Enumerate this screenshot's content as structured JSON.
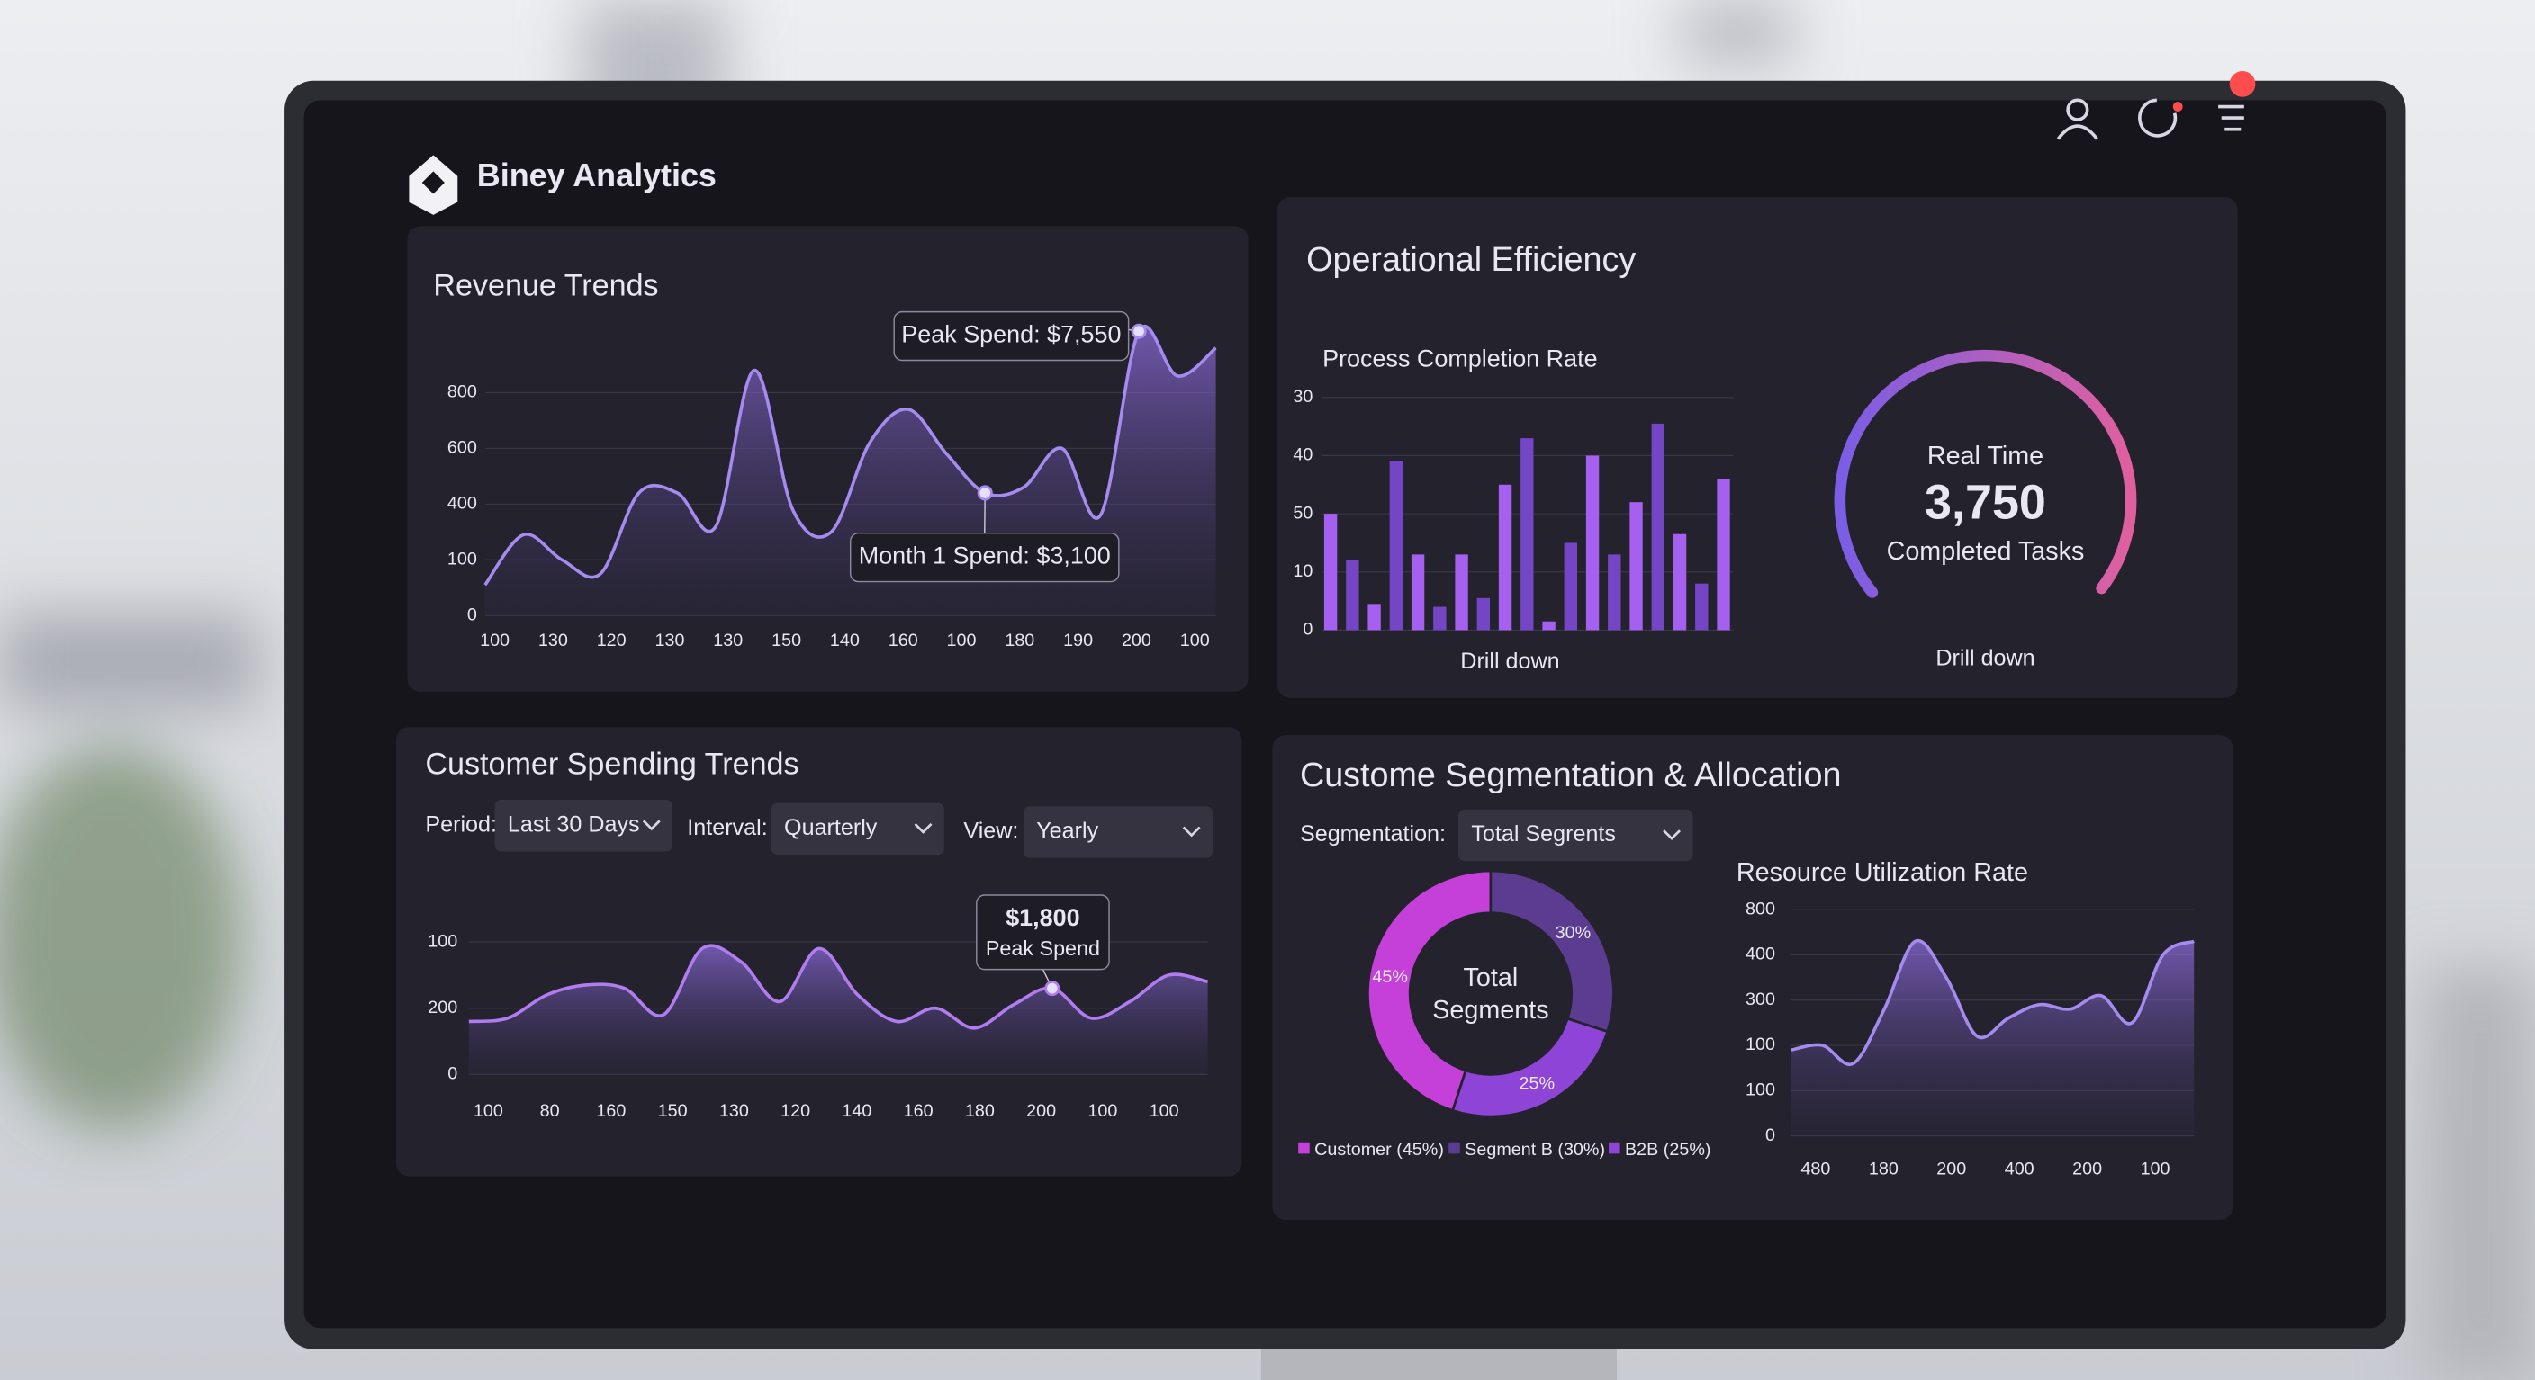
{
  "header": {
    "title": "Biney Analytics"
  },
  "revenue_trends": {
    "type": "line",
    "title": "Revenue Trends",
    "x_labels": [
      "100",
      "130",
      "120",
      "130",
      "130",
      "150",
      "140",
      "160",
      "100",
      "180",
      "190",
      "200",
      "100"
    ],
    "y_labels": [
      "0",
      "100",
      "400",
      "600",
      "800"
    ],
    "values": [
      0.55,
      1.45,
      1.0,
      0.75,
      2.2,
      2.2,
      1.6,
      4.4,
      1.9,
      1.5,
      3.1,
      3.7,
      2.9,
      2.2,
      2.3,
      3.0,
      1.8,
      5.1,
      4.3,
      4.8
    ],
    "color": "#a58af0",
    "annotations": [
      {
        "text": "Peak Spend: $7,550",
        "point": 17
      },
      {
        "text": "Month 1 Spend: $3,100",
        "point": 13
      }
    ]
  },
  "operational_efficiency": {
    "title": "Operational Efficiency",
    "process_completion": {
      "type": "bar",
      "title": "Process Completion Rate",
      "y_labels": [
        "0",
        "10",
        "50",
        "40",
        "30"
      ],
      "values": [
        2.0,
        1.2,
        0.45,
        2.9,
        1.3,
        0.4,
        1.3,
        0.55,
        2.5,
        3.3,
        0.15,
        1.5,
        3.0,
        1.3,
        2.2,
        3.55,
        1.65,
        0.8,
        2.6
      ],
      "colors": [
        "#a560f0",
        "#7446c6"
      ],
      "link": "Drill down"
    },
    "realtime": {
      "type": "gauge",
      "label": "Real Time",
      "value": "3,750",
      "caption": "Completed Tasks",
      "link": "Drill down",
      "colors": [
        "#7a5ee6",
        "#e0609e"
      ]
    }
  },
  "customer_spending": {
    "type": "line",
    "title": "Customer Spending Trends",
    "filters": [
      {
        "label": "Period:",
        "value": "Last 30 Days"
      },
      {
        "label": "Interval:",
        "value": "Quarterly"
      },
      {
        "label": "View:",
        "value": "Yearly"
      }
    ],
    "x_labels": [
      "100",
      "80",
      "160",
      "150",
      "130",
      "120",
      "140",
      "160",
      "180",
      "200",
      "100",
      "100"
    ],
    "y_labels": [
      "0",
      "200",
      "100"
    ],
    "values": [
      0.8,
      0.85,
      1.2,
      1.35,
      1.3,
      0.9,
      1.9,
      1.7,
      1.1,
      1.9,
      1.2,
      0.8,
      1.0,
      0.7,
      1.05,
      1.3,
      0.85,
      1.1,
      1.5,
      1.4
    ],
    "color": "#b07cf0",
    "annotations": [
      {
        "text": "$1,800",
        "subtext": "Peak Spend",
        "point": 15
      }
    ]
  },
  "segmentation": {
    "title": "Custome Segmentation & Allocation",
    "filter": {
      "label": "Segmentation:",
      "value": "Total Segrents"
    },
    "donut": {
      "type": "pie",
      "center_label": [
        "Total",
        "Segments"
      ],
      "categories": [
        "Customer (45%)",
        "Segment B (30%)",
        "B2B (25%)"
      ],
      "values": [
        45,
        30,
        25
      ],
      "value_labels": [
        "45%",
        "30%",
        "25%"
      ],
      "colors": [
        "#c440d8",
        "#5b3c90",
        "#8e44d6"
      ]
    },
    "resource_utilization": {
      "type": "line",
      "title": "Resource Utilization Rate",
      "x_labels": [
        "480",
        "180",
        "200",
        "400",
        "200",
        "100"
      ],
      "y_labels": [
        "0",
        "100",
        "100",
        "300",
        "400",
        "800"
      ],
      "values": [
        1.9,
        2.0,
        1.6,
        2.8,
        4.3,
        3.5,
        2.2,
        2.6,
        2.9,
        2.8,
        3.1,
        2.5,
        4.0,
        4.3
      ],
      "color": "#a58af0"
    }
  }
}
